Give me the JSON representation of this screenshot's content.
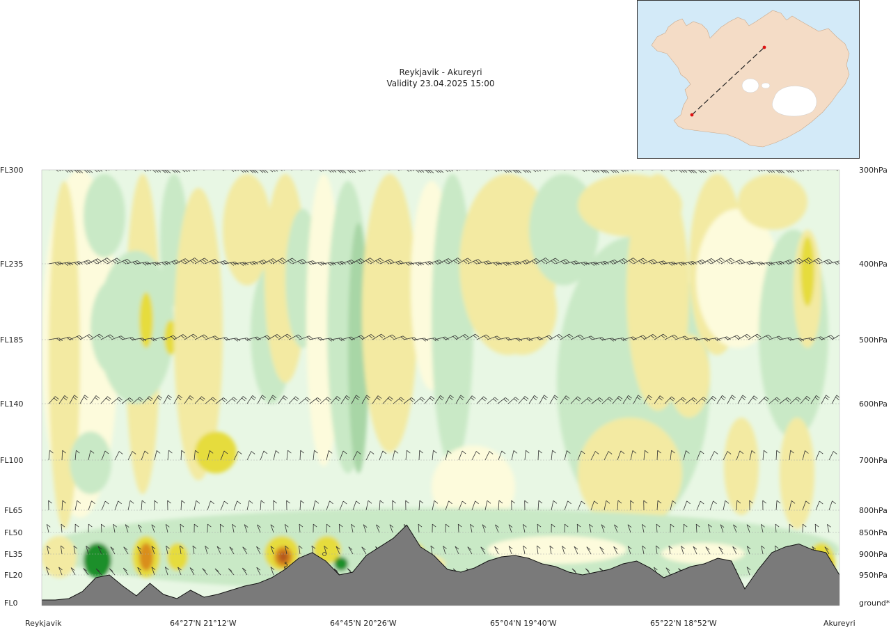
{
  "title": "Reykjavik - Akureyri",
  "subtitle": "Validity 23.04.2025 15:00",
  "colors": {
    "terrain": "#7a7a7a",
    "turb_light_green": "#e8f7e4",
    "turb_green": "#c9e9c6",
    "turb_dark_green": "#a8d6a6",
    "turb_pale_yellow": "#fdfbdc",
    "turb_yellow": "#f3eaa2",
    "turb_strong_yellow": "#e6dc3c",
    "turb_orange": "#d98e1c",
    "turb_brown": "#b5591a",
    "turb_deep_green": "#1f8f2c",
    "map_sea": "#d3eaf8",
    "map_land": "#f4dcc6",
    "map_ice": "#ffffff",
    "route": "#222222",
    "route_endpoint": "#dd1111"
  },
  "chart_data": {
    "type": "heatmap",
    "title": "Reykjavik - Akureyri",
    "subtitle": "Validity 23.04.2025 15:00",
    "x_locations": [
      "Reykjavik",
      "64°27'N 21°12'W",
      "64°45'N 20°26'W",
      "65°04'N 19°40'W",
      "65°22'N 18°52'W",
      "Akureyri"
    ],
    "left_levels": [
      {
        "label": "FL300",
        "fl": 300
      },
      {
        "label": "FL235",
        "fl": 235
      },
      {
        "label": "FL185",
        "fl": 185
      },
      {
        "label": "FL140",
        "fl": 140
      },
      {
        "label": "FL100",
        "fl": 100
      },
      {
        "label": "FL65",
        "fl": 65
      },
      {
        "label": "FL50",
        "fl": 50
      },
      {
        "label": "FL35",
        "fl": 35
      },
      {
        "label": "FL20",
        "fl": 20
      },
      {
        "label": "FL0",
        "fl": 0
      }
    ],
    "right_levels": [
      "300hPa",
      "400hPa",
      "500hPa",
      "600hPa",
      "700hPa",
      "800hPa",
      "850hPa",
      "900hPa",
      "950hPa",
      "ground*"
    ],
    "terrain_profile_fl": [
      2,
      2,
      3,
      8,
      18,
      20,
      12,
      5,
      14,
      6,
      3,
      9,
      4,
      6,
      9,
      12,
      14,
      18,
      24,
      32,
      36,
      30,
      20,
      22,
      34,
      40,
      46,
      55,
      40,
      34,
      24,
      22,
      25,
      30,
      33,
      34,
      32,
      28,
      26,
      22,
      20,
      22,
      24,
      28,
      30,
      25,
      18,
      22,
      26,
      28,
      32,
      30,
      10,
      24,
      36,
      40,
      42,
      38,
      36,
      20
    ],
    "grid": true
  }
}
